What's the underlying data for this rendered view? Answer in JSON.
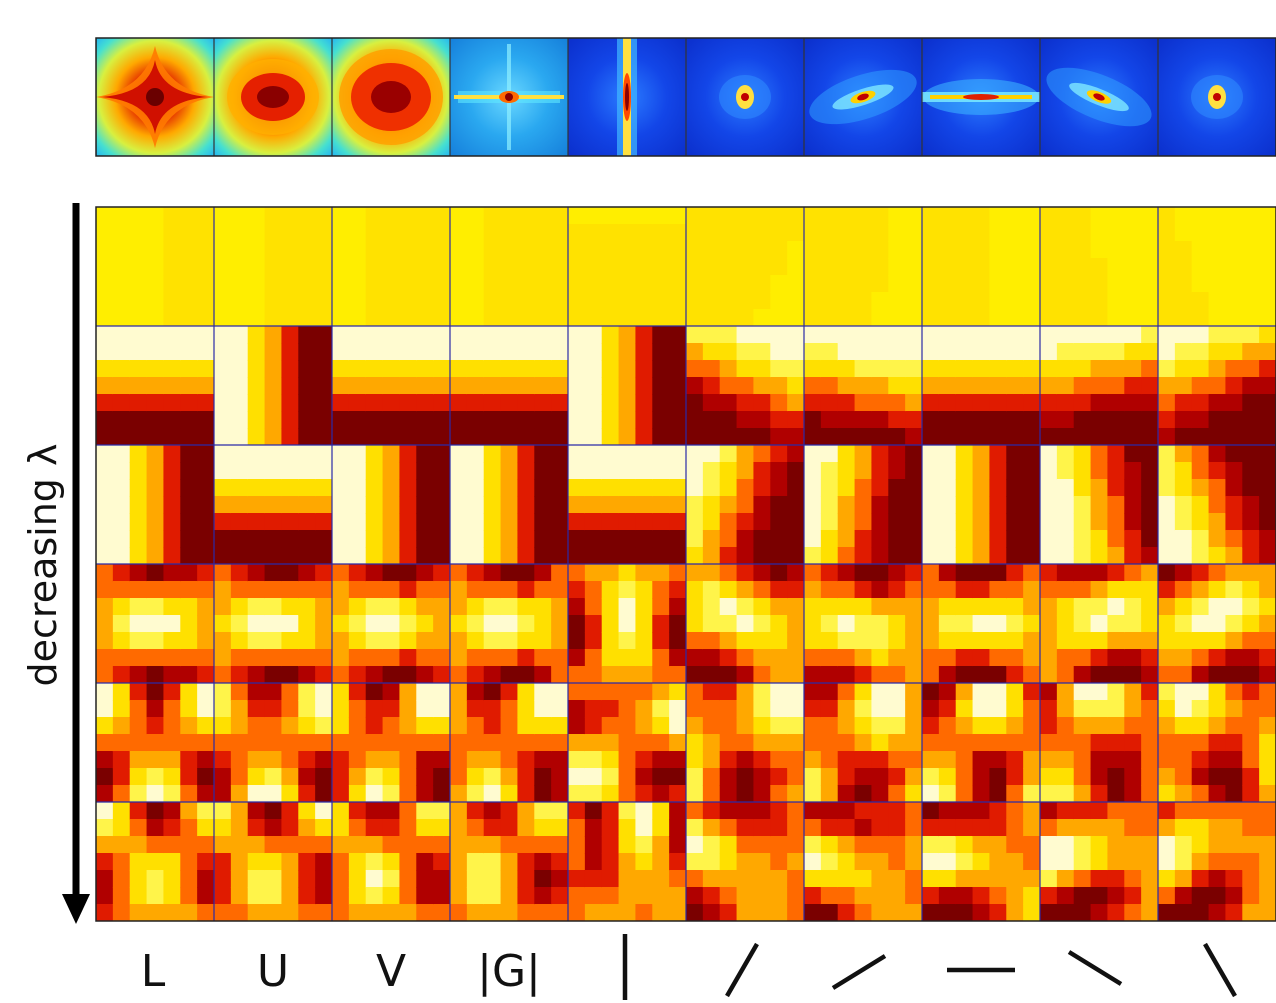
{
  "figure": {
    "columns": [
      {
        "label": "L",
        "glyph": "text",
        "spectrum": "warm-diamond"
      },
      {
        "label": "U",
        "glyph": "text",
        "spectrum": "warm-ellipse"
      },
      {
        "label": "V",
        "glyph": "text",
        "spectrum": "warm-blob"
      },
      {
        "label": "|G|",
        "glyph": "text",
        "spectrum": "cool-cross"
      },
      {
        "label": "",
        "glyph": "vertical",
        "spectrum": "vertical-streak"
      },
      {
        "label": "",
        "glyph": "diag-steep-right",
        "spectrum": "point"
      },
      {
        "label": "",
        "glyph": "diag-shallow-right",
        "spectrum": "oblique-right"
      },
      {
        "label": "",
        "glyph": "horizontal",
        "spectrum": "horizontal-streak"
      },
      {
        "label": "",
        "glyph": "diag-shallow-left",
        "spectrum": "oblique-left"
      },
      {
        "label": "",
        "glyph": "diag-steep-left",
        "spectrum": "point"
      }
    ],
    "axis_label": "decreasing λ",
    "rows": 6,
    "colors": {
      "hot": [
        "#7a0000",
        "#b00000",
        "#e01b00",
        "#ff6a00",
        "#ffa800",
        "#ffe000",
        "#fff44a",
        "#fffbd0"
      ],
      "jet_bg": "#0a2fd8",
      "grid_line": "#2a2aa8",
      "frame": "#222222"
    }
  }
}
